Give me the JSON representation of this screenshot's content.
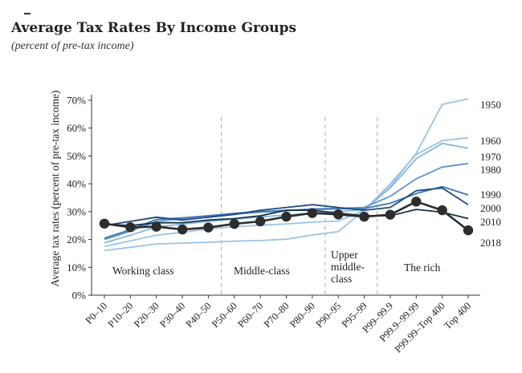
{
  "header": {
    "title": "Average Tax Rates By Income Groups",
    "subtitle": "(percent of pre-tax income)"
  },
  "chart_data": {
    "type": "line",
    "ylabel": "Average tax rates (percent of pre-tax income)",
    "ylim": [
      0,
      72
    ],
    "yticks": [
      "0%",
      "10%",
      "20%",
      "30%",
      "40%",
      "50%",
      "60%",
      "70%"
    ],
    "categories": [
      "P0–10",
      "P10–20",
      "P20–30",
      "P30–40",
      "P40–50",
      "P50–60",
      "P60–70",
      "P70–80",
      "P80–90",
      "P90–95",
      "P95–99",
      "P99–99.9",
      "P99.9–99.99",
      "P99.99–Top 400",
      "Top 400"
    ],
    "regions": [
      {
        "label": [
          "Working class"
        ]
      },
      {
        "label": [
          "Middle-class"
        ]
      },
      {
        "label": [
          "Upper",
          "middle-",
          "class"
        ]
      },
      {
        "label": [
          "The rich"
        ]
      }
    ],
    "series": [
      {
        "name": "1950",
        "color": "#9cc3e6",
        "values": [
          16.0,
          17.2,
          18.4,
          18.7,
          19.0,
          19.4,
          19.6,
          20.1,
          21.6,
          22.8,
          30.5,
          39.0,
          51.0,
          68.5,
          70.5
        ]
      },
      {
        "name": "1960",
        "color": "#9cc3e6",
        "values": [
          17.5,
          19.5,
          21.5,
          22.6,
          23.8,
          24.6,
          25.1,
          25.6,
          26.2,
          26.6,
          30.5,
          40.0,
          50.5,
          55.5,
          56.5
        ]
      },
      {
        "name": "1970",
        "color": "#86b6e0",
        "values": [
          18.8,
          21.5,
          24.5,
          25.5,
          26.5,
          27.3,
          28.1,
          28.8,
          29.5,
          30.0,
          30.8,
          38.5,
          49.0,
          54.5,
          52.8
        ]
      },
      {
        "name": "1980",
        "color": "#5b96cf",
        "values": [
          20.0,
          23.0,
          26.5,
          27.5,
          28.5,
          29.1,
          29.8,
          30.3,
          31.0,
          31.2,
          31.5,
          35.5,
          41.8,
          46.0,
          47.3
        ]
      },
      {
        "name": "1990",
        "color": "#3f78b7",
        "values": [
          20.5,
          23.5,
          27.2,
          27.8,
          28.5,
          29.4,
          30.0,
          30.5,
          30.8,
          31.0,
          31.1,
          33.0,
          36.5,
          39.0,
          36.0
        ]
      },
      {
        "name": "2000",
        "color": "#1e4a7c",
        "values": [
          25.0,
          26.5,
          28.0,
          27.0,
          28.0,
          29.0,
          30.5,
          31.5,
          32.5,
          31.5,
          30.5,
          31.5,
          37.5,
          38.5,
          32.5
        ]
      },
      {
        "name": "2010",
        "color": "#14324e",
        "values": [
          25.5,
          25.0,
          26.0,
          26.0,
          27.0,
          27.5,
          28.5,
          30.5,
          30.5,
          29.5,
          28.5,
          28.5,
          30.8,
          29.8,
          27.5
        ]
      },
      {
        "name": "2018",
        "color": "#2d2d2d",
        "values": [
          25.7,
          24.4,
          24.6,
          23.6,
          24.3,
          25.6,
          26.5,
          28.2,
          29.5,
          29.0,
          28.2,
          28.9,
          33.6,
          30.5,
          23.3
        ]
      }
    ]
  }
}
